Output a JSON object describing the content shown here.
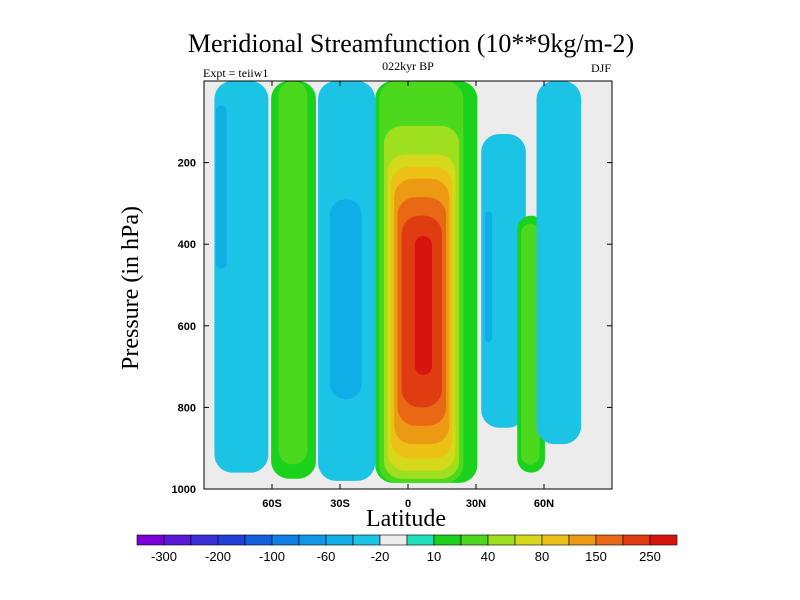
{
  "chart_data": {
    "type": "heatmap",
    "title": "Meridional Streamfunction (10**9kg/m-2)",
    "left_label": "Expt = teiiw1",
    "center_label": "022kyr BP",
    "right_label": "DJF",
    "xlabel": "Latitude",
    "ylabel": "Pressure (in hPa)",
    "xlim": [
      -90,
      90
    ],
    "ylim": [
      1000,
      0
    ],
    "x_ticks": [
      {
        "value": -60,
        "label": "60S"
      },
      {
        "value": -30,
        "label": "30S"
      },
      {
        "value": 0,
        "label": "0"
      },
      {
        "value": 30,
        "label": "30N"
      },
      {
        "value": 60,
        "label": "60N"
      }
    ],
    "y_ticks": [
      {
        "value": 200,
        "label": "200"
      },
      {
        "value": 400,
        "label": "400"
      },
      {
        "value": 600,
        "label": "600"
      },
      {
        "value": 800,
        "label": "800"
      },
      {
        "value": 1000,
        "label": "1000"
      }
    ],
    "colorbar": {
      "boundaries": [
        -300,
        -250,
        -200,
        -150,
        -100,
        -80,
        -60,
        -40,
        -20,
        -10,
        10,
        20,
        40,
        60,
        80,
        100,
        150,
        200,
        250,
        300
      ],
      "labeled": [
        {
          "value": -300,
          "label": "-300"
        },
        {
          "value": -200,
          "label": "-200"
        },
        {
          "value": -100,
          "label": "-100"
        },
        {
          "value": -60,
          "label": "-60"
        },
        {
          "value": -20,
          "label": "-20"
        },
        {
          "value": 10,
          "label": "10"
        },
        {
          "value": 40,
          "label": "40"
        },
        {
          "value": 80,
          "label": "80"
        },
        {
          "value": 150,
          "label": "150"
        },
        {
          "value": 250,
          "label": "250"
        }
      ],
      "colors": [
        "#7a00d6",
        "#5a1ad8",
        "#3a30d8",
        "#2040d8",
        "#1160e0",
        "#0f7fe6",
        "#1196e8",
        "#10aee6",
        "#1bc3e4",
        "#ececec",
        "#1ee0b8",
        "#1ad21c",
        "#4cd81c",
        "#9ee01e",
        "#d6d81c",
        "#ecc014",
        "#ec9a14",
        "#e86814",
        "#e03c12",
        "#d8140e"
      ]
    },
    "regions": [
      {
        "name": "band-far-south-level1",
        "value": -20,
        "lat": [
          -85.4,
          -61.6
        ],
        "p": [
          0,
          960
        ]
      },
      {
        "name": "band-far-south-level2",
        "value": -40,
        "lat": [
          -84.8,
          -80.0
        ],
        "p": [
          60,
          460
        ]
      },
      {
        "name": "band-mid-south-outer",
        "value": 10,
        "lat": [
          -60.4,
          -40.6
        ],
        "p": [
          0,
          975
        ]
      },
      {
        "name": "band-mid-south-inner",
        "value": 20,
        "lat": [
          -57.2,
          -44.4
        ],
        "p": [
          0,
          940
        ]
      },
      {
        "name": "band-southern-subtropics",
        "value": -20,
        "lat": [
          -39.7,
          -14.5
        ],
        "p": [
          0,
          980
        ]
      },
      {
        "name": "band-southern-subtropics-inner",
        "value": -40,
        "lat": [
          -34.5,
          -20.4
        ],
        "p": [
          290,
          780
        ]
      },
      {
        "name": "hadley-10",
        "value": 10,
        "lat": [
          -14.5,
          30.6
        ],
        "p": [
          0,
          985
        ]
      },
      {
        "name": "hadley-20",
        "value": 20,
        "lat": [
          -12.7,
          24.4
        ],
        "p": [
          0,
          985
        ]
      },
      {
        "name": "hadley-40",
        "value": 40,
        "lat": [
          -10.6,
          22.6
        ],
        "p": [
          110,
          975
        ]
      },
      {
        "name": "hadley-60",
        "value": 60,
        "lat": [
          -9.0,
          20.9
        ],
        "p": [
          180,
          955
        ]
      },
      {
        "name": "hadley-80",
        "value": 80,
        "lat": [
          -7.5,
          19.5
        ],
        "p": [
          210,
          925
        ]
      },
      {
        "name": "hadley-100",
        "value": 100,
        "lat": [
          -6.1,
          18.2
        ],
        "p": [
          240,
          890
        ]
      },
      {
        "name": "hadley-150",
        "value": 150,
        "lat": [
          -4.6,
          16.8
        ],
        "p": [
          285,
          845
        ]
      },
      {
        "name": "hadley-200",
        "value": 200,
        "lat": [
          -2.8,
          15.0
        ],
        "p": [
          330,
          800
        ]
      },
      {
        "name": "hadley-250",
        "value": 250,
        "lat": [
          3.0,
          10.6
        ],
        "p": [
          380,
          720
        ]
      },
      {
        "name": "ferrel-north-outer",
        "value": -20,
        "lat": [
          32.3,
          52.0
        ],
        "p": [
          130,
          850
        ]
      },
      {
        "name": "ferrel-north-inner",
        "value": -40,
        "lat": [
          33.9,
          37.1
        ],
        "p": [
          320,
          640
        ]
      },
      {
        "name": "polar-north-10",
        "value": 10,
        "lat": [
          48.2,
          60.4
        ],
        "p": [
          330,
          960
        ]
      },
      {
        "name": "polar-north-20",
        "value": 20,
        "lat": [
          49.9,
          58.1
        ],
        "p": [
          350,
          940
        ]
      },
      {
        "name": "arctic-cell",
        "value": -20,
        "lat": [
          56.7,
          76.4
        ],
        "p": [
          0,
          890
        ]
      }
    ]
  }
}
